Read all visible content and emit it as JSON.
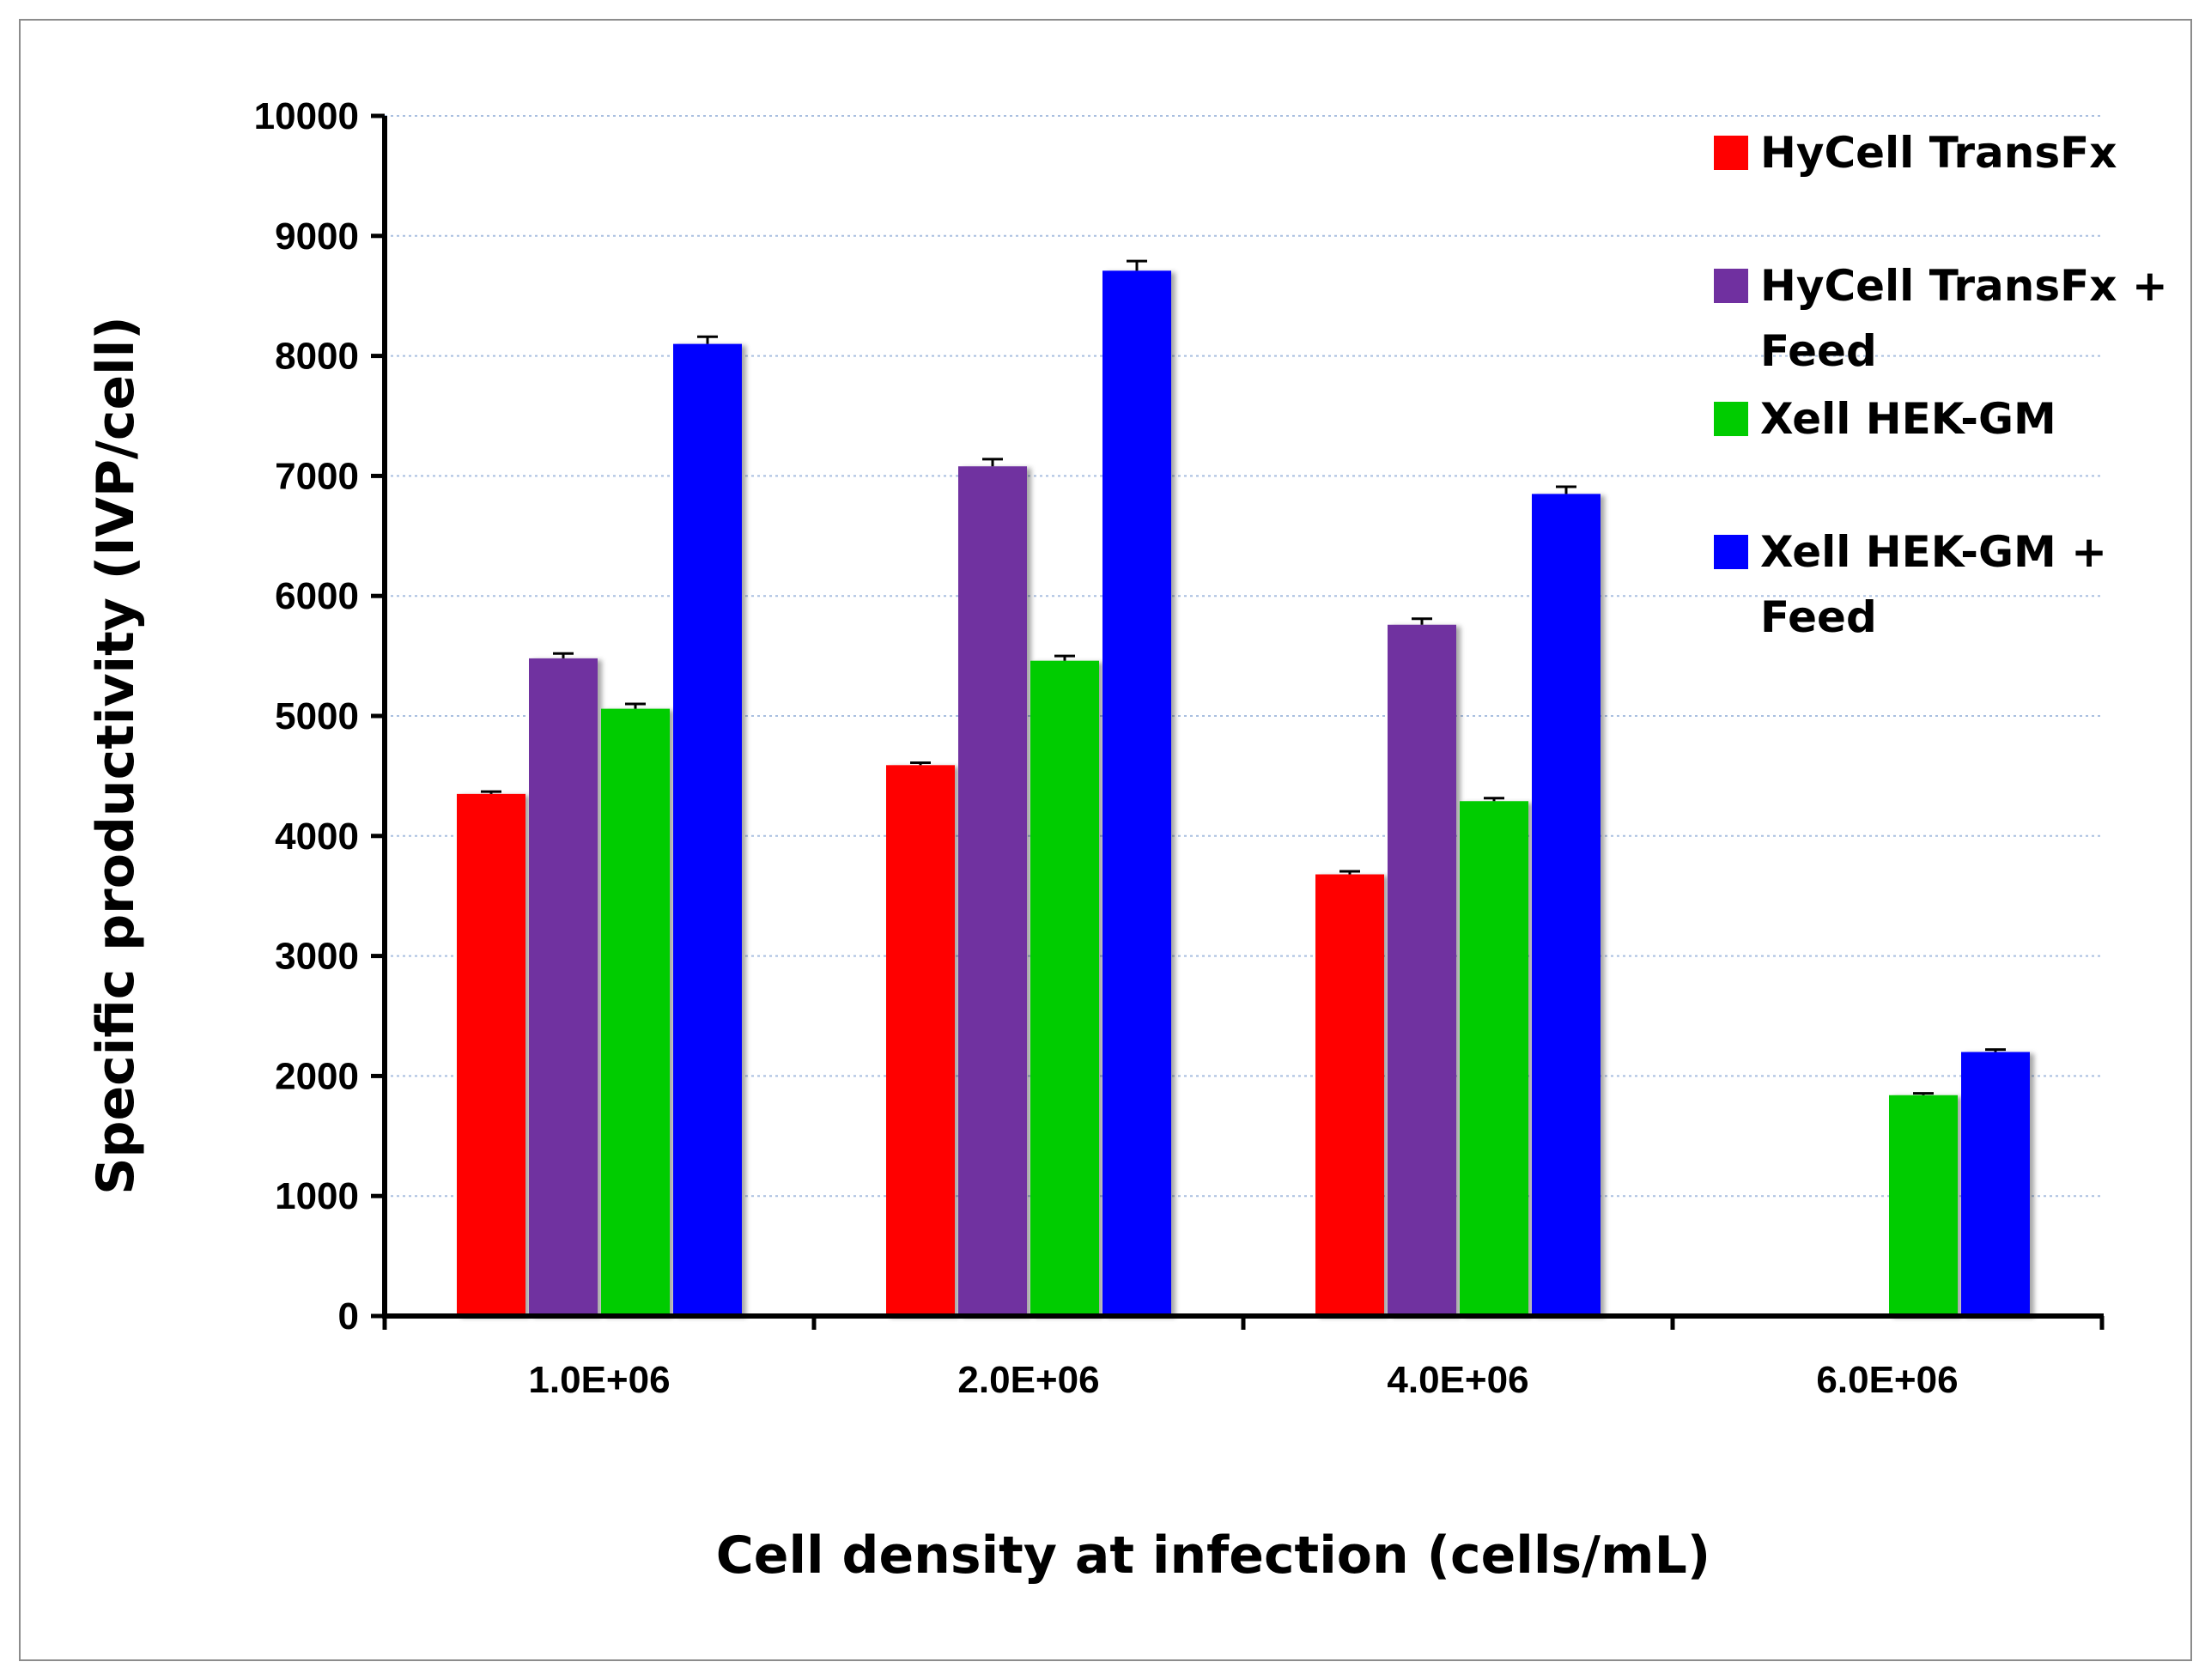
{
  "chart_data": {
    "type": "bar",
    "xlabel": "Cell density at infection (cells/mL)",
    "ylabel": "Specific productivity (IVP/cell)",
    "ylim": [
      0,
      10000
    ],
    "ytick_step": 1000,
    "yticks": [
      "0",
      "1000",
      "2000",
      "3000",
      "4000",
      "5000",
      "6000",
      "7000",
      "8000",
      "9000",
      "10000"
    ],
    "categories": [
      "1.0E+06",
      "2.0E+06",
      "4.0E+06",
      "6.0E+06"
    ],
    "grid": true,
    "legend_position": "top-right",
    "series": [
      {
        "name": "HyCell TransFx",
        "legend_lines": [
          "HyCell TransFx"
        ],
        "color": "#ff0000",
        "values": [
          4350,
          4590,
          3680,
          null
        ],
        "errors": [
          20,
          20,
          25,
          null
        ]
      },
      {
        "name": "HyCell TransFx + Feed",
        "legend_lines": [
          "HyCell TransFx +",
          "Feed"
        ],
        "color": "#7030a0",
        "values": [
          5480,
          7080,
          5760,
          null
        ],
        "errors": [
          40,
          60,
          50,
          null
        ]
      },
      {
        "name": "Xell HEK-GM",
        "legend_lines": [
          "Xell HEK-GM"
        ],
        "color": "#00cc00",
        "values": [
          5060,
          5460,
          4290,
          1840
        ],
        "errors": [
          40,
          40,
          25,
          15
        ]
      },
      {
        "name": "Xell HEK-GM + Feed",
        "legend_lines": [
          "Xell HEK-GM +",
          "Feed"
        ],
        "color": "#0000ff",
        "values": [
          8100,
          8710,
          6850,
          2200
        ],
        "errors": [
          60,
          80,
          60,
          20
        ]
      }
    ]
  }
}
